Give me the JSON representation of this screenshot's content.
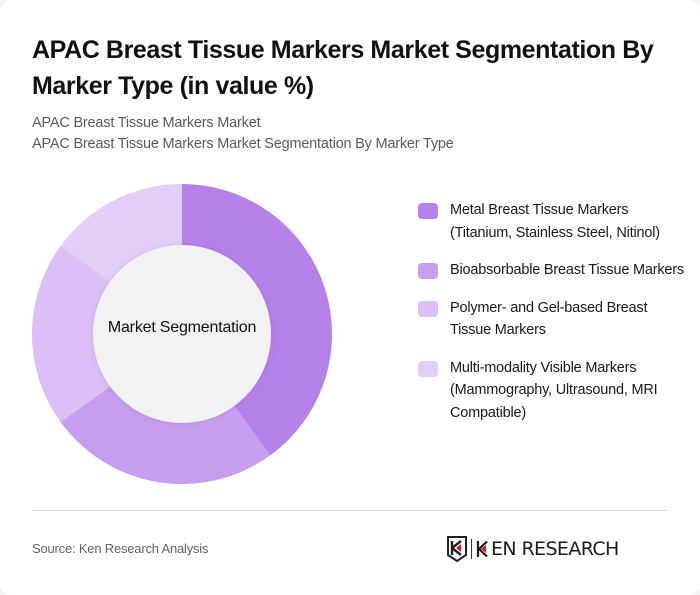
{
  "header": {
    "title": "APAC Breast Tissue Markers Market Segmentation By Marker Type (in value %)",
    "subtitle_line1": "APAC Breast Tissue Markers Market",
    "subtitle_line2": "APAC Breast Tissue Markers Market Segmentation By Marker Type"
  },
  "chart": {
    "center_label": "Market Segmentation"
  },
  "legend": {
    "items": [
      {
        "label": "Metal Breast Tissue Markers (Titanium, Stainless Steel, Nitinol)",
        "color": "#b582ea"
      },
      {
        "label": "Bioabsorbable Breast Tissue Markers",
        "color": "#c79def"
      },
      {
        "label": "Polymer- and Gel-based Breast Tissue Markers",
        "color": "#dbbff6"
      },
      {
        "label": "Multi-modality Visible Markers (Mammography, Ultrasound, MRI Compatible)",
        "color": "#e3cef8"
      }
    ]
  },
  "footer": {
    "source": "Source: Ken Research Analysis",
    "logo_text": "EN RESEARCH",
    "logo_name": "KEN RESEARCH"
  },
  "chart_data": {
    "type": "pie",
    "subtype": "donut",
    "title": "APAC Breast Tissue Markers Market Segmentation By Marker Type (in value %)",
    "center_label": "Market Segmentation",
    "categories": [
      "Metal Breast Tissue Markers (Titanium, Stainless Steel, Nitinol)",
      "Bioabsorbable Breast Tissue Markers",
      "Polymer- and Gel-based Breast Tissue Markers",
      "Multi-modality Visible Markers (Mammography, Ultrasound, MRI Compatible)"
    ],
    "values": [
      40,
      25,
      20,
      15
    ],
    "colors": [
      "#b582ea",
      "#c79def",
      "#dbbff6",
      "#e3cef8"
    ],
    "unit": "%",
    "start_angle": "12 o'clock, clockwise",
    "legend_position": "right"
  }
}
